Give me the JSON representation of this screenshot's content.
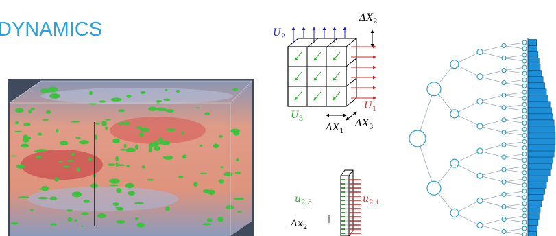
{
  "header": {
    "title": "DYNAMICS"
  },
  "cube_diagram": {
    "labels": [
      {
        "main": "U",
        "sub": "2"
      },
      {
        "main": "ΔX",
        "sub": "2"
      },
      {
        "main": "U",
        "sub": "1"
      },
      {
        "main": "U",
        "sub": "3"
      },
      {
        "main": "ΔX",
        "sub": "1"
      },
      {
        "main": "ΔX",
        "sub": "3"
      }
    ]
  },
  "slab_diagram": {
    "labels": [
      {
        "main": "u",
        "sub": "2,3"
      },
      {
        "main": "u",
        "sub": "2,1"
      },
      {
        "main": "Δx",
        "sub": "2"
      }
    ]
  }
}
